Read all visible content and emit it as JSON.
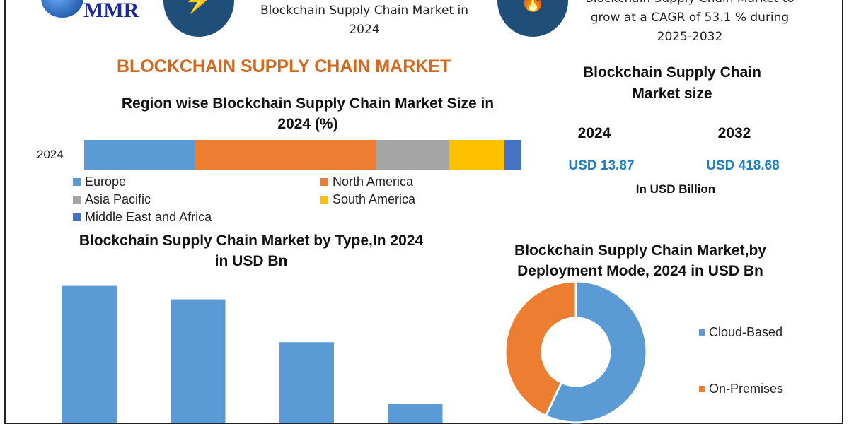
{
  "logo": {
    "text": "MMR"
  },
  "header": {
    "left_text": "Blockchain Supply Chain Market in 2024",
    "right_text_cut": "Blockchain Supply Chain Market to",
    "right_text": "grow at a CAGR of 53.1 % during 2025-2032",
    "icons": [
      "lightning-icon",
      "flame-icon"
    ]
  },
  "main_title": "BLOCKCHAIN SUPPLY CHAIN MARKET",
  "market_size": {
    "title": "Blockchain Supply Chain Market size",
    "year1": "2024",
    "year2": "2032",
    "value1": "USD 13.87",
    "value2": "USD 418.68",
    "unit": "In USD Billion"
  },
  "colors": {
    "title_orange": "#d2691e",
    "value_blue": "#1f7fc1",
    "blue": "#5b9bd5",
    "orange": "#ed7d31",
    "gray": "#a5a5a5",
    "yellow": "#ffc000",
    "dark_blue": "#4472c4",
    "icon_bg": "#1f4e79"
  },
  "chart_data": [
    {
      "type": "bar",
      "stacked": true,
      "orientation": "horizontal",
      "title": "Region wise Blockchain Supply Chain Market Size in 2024 (%)",
      "categories": [
        "2024"
      ],
      "series": [
        {
          "name": "Europe",
          "values": [
            25.2
          ],
          "color": "#5b9bd5"
        },
        {
          "name": "North America",
          "values": [
            41.6
          ],
          "color": "#ed7d31"
        },
        {
          "name": "Asia Pacific",
          "values": [
            16.7
          ],
          "color": "#a5a5a5"
        },
        {
          "name": "South America",
          "values": [
            12.6
          ],
          "color": "#ffc000"
        },
        {
          "name": "Middle East and Africa",
          "values": [
            3.9
          ],
          "color": "#4472c4"
        }
      ],
      "xlim": [
        0,
        100
      ],
      "legend": "bottom"
    },
    {
      "type": "bar",
      "title": "Blockchain Supply Chain Market by Type,In 2024 in USD Bn",
      "values": [
        5.1,
        4.6,
        3.0,
        0.7
      ],
      "color": "#5b9bd5",
      "ylim": [
        0,
        5.3
      ]
    },
    {
      "type": "pie",
      "donut": true,
      "title": "Blockchain Supply Chain Market,by Deployment Mode, 2024 in USD Bn",
      "series": [
        {
          "name": "Cloud-Based",
          "value": 57,
          "color": "#5b9bd5"
        },
        {
          "name": "On-Premises",
          "value": 43,
          "color": "#ed7d31"
        }
      ],
      "legend": "right"
    }
  ]
}
